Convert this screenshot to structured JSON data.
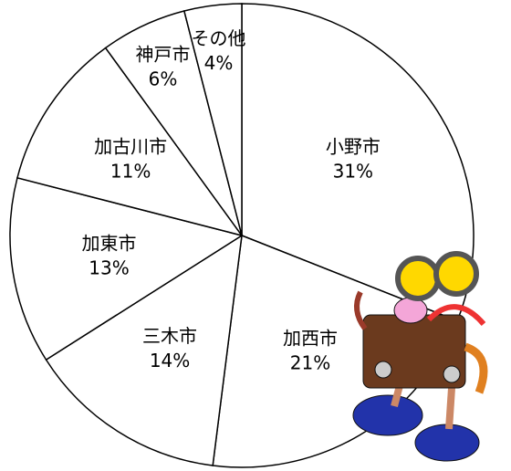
{
  "chart_data": {
    "type": "pie",
    "categories": [
      "小野市",
      "加西市",
      "三木市",
      "加東市",
      "加古川市",
      "神戸市",
      "その他"
    ],
    "values": [
      31,
      21,
      14,
      13,
      11,
      6,
      4
    ],
    "value_labels": [
      "31%",
      "21%",
      "14%",
      "13%",
      "11%",
      "6%",
      "4%"
    ],
    "color": "#ffffff"
  }
}
